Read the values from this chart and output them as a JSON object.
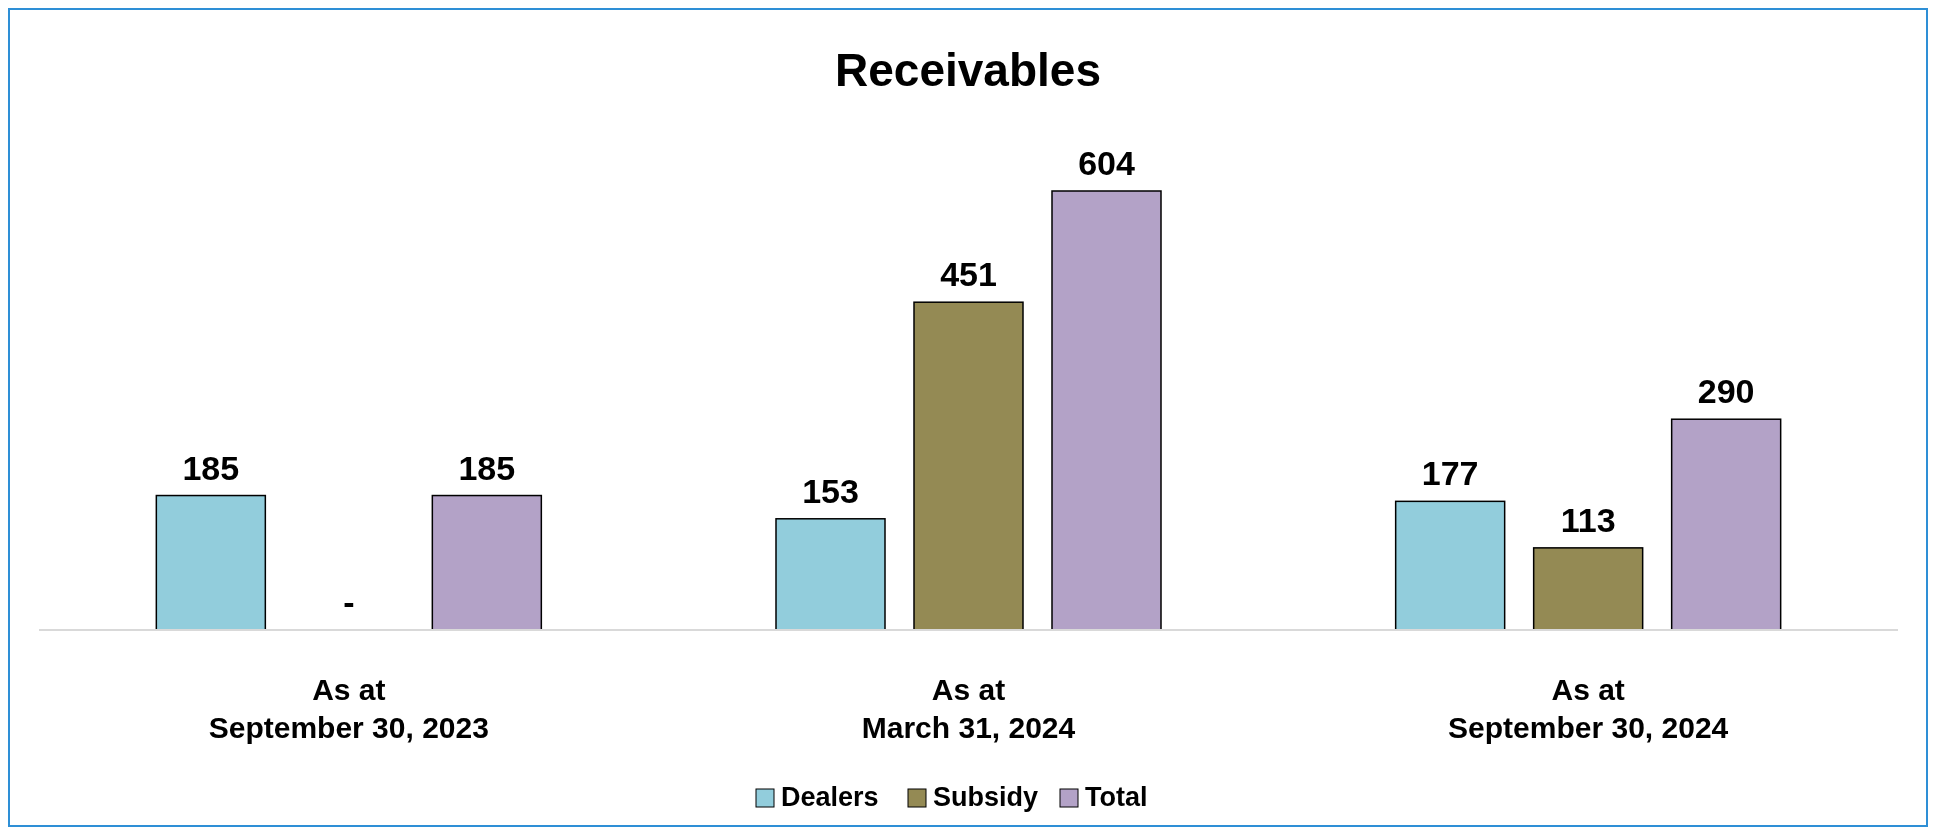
{
  "chart_data": {
    "type": "bar",
    "title": "Receivables",
    "categories": [
      "As at\nSeptember 30, 2023",
      "As at\nMarch 31, 2024",
      "As at\nSeptember 30, 2024"
    ],
    "series": [
      {
        "name": "Dealers",
        "color": "#92cddc",
        "values": [
          185,
          153,
          177
        ]
      },
      {
        "name": "Subsidy",
        "color": "#948a54",
        "values": [
          0,
          451,
          113
        ],
        "value_labels": [
          "-",
          "451",
          "113"
        ]
      },
      {
        "name": "Total",
        "color": "#b3a2c7",
        "values": [
          185,
          604,
          290
        ]
      }
    ],
    "data_labels": true,
    "legend": "bottom"
  }
}
